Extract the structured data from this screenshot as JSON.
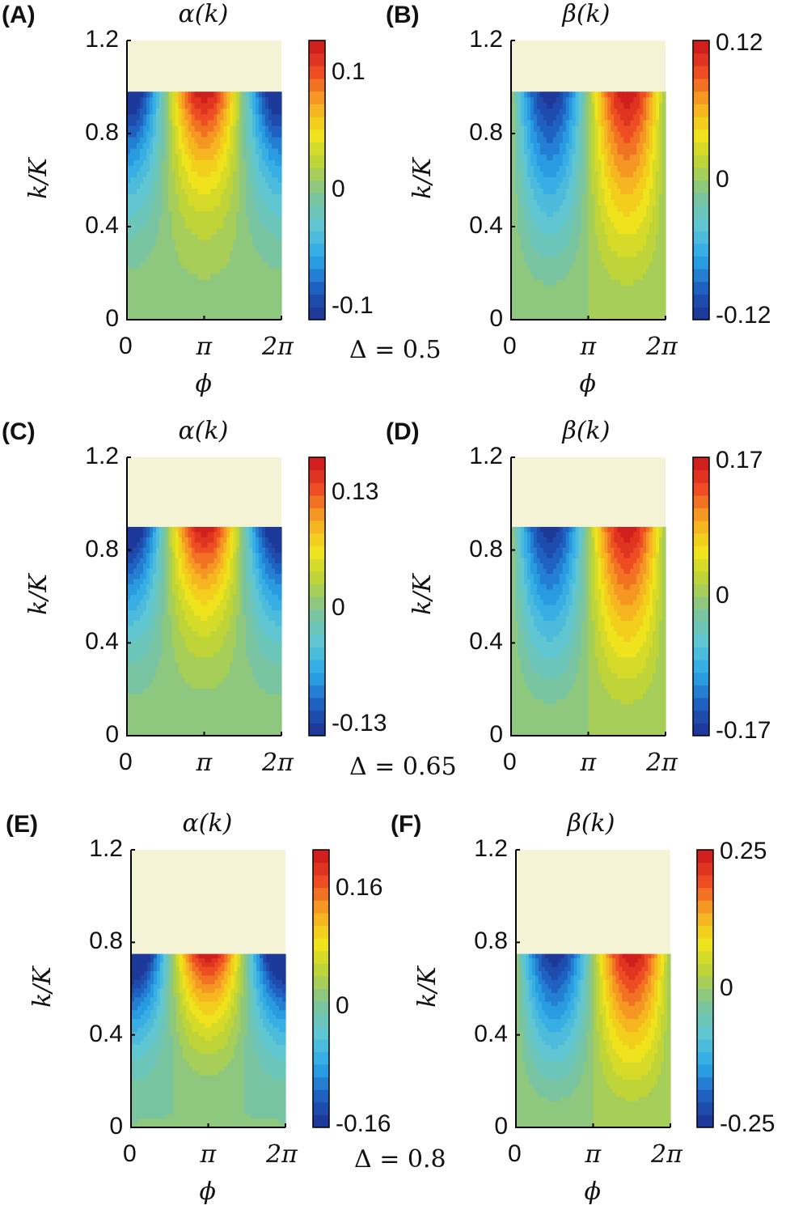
{
  "chart_data": [
    {
      "panel": "(A)",
      "type": "heatmap",
      "title": "α(k)",
      "quantity": "alpha",
      "delta": 0.5,
      "xlabel": "ϕ",
      "ylabel": "k/K",
      "xticks": [
        "0",
        "π",
        "2π"
      ],
      "yticks": [
        "0",
        "0.4",
        "0.8",
        "1.2"
      ],
      "ylim": [
        0,
        1.2
      ],
      "xlim": [
        0,
        6.2832
      ],
      "k_cutoff": 0.98,
      "clim": [
        -0.111,
        0.128
      ],
      "cbar_ticks": [
        {
          "v": 0.1,
          "label": "0.1"
        },
        {
          "v": 0,
          "label": "0"
        },
        {
          "v": -0.1,
          "label": "-0.1"
        }
      ]
    },
    {
      "panel": "(B)",
      "type": "heatmap",
      "title": "β(k)",
      "quantity": "beta",
      "delta": 0.5,
      "xlabel": "ϕ",
      "ylabel": "k/K",
      "xticks": [
        "0",
        "π",
        "2π"
      ],
      "yticks": [
        "0",
        "0.4",
        "0.8",
        "1.2"
      ],
      "ylim": [
        0,
        1.2
      ],
      "xlim": [
        0,
        6.2832
      ],
      "k_cutoff": 0.98,
      "clim": [
        -0.123,
        0.123
      ],
      "cbar_ticks": [
        {
          "v": 0.12,
          "label": "0.12"
        },
        {
          "v": 0,
          "label": "0"
        },
        {
          "v": -0.12,
          "label": "-0.12"
        }
      ]
    },
    {
      "panel": "(C)",
      "type": "heatmap",
      "title": "α(k)",
      "quantity": "alpha",
      "delta": 0.65,
      "xlabel": "",
      "ylabel": "k/K",
      "xticks": [
        "0",
        "π",
        "2π"
      ],
      "yticks": [
        "0",
        "0.4",
        "0.8",
        "1.2"
      ],
      "ylim": [
        0,
        1.2
      ],
      "xlim": [
        0,
        6.2832
      ],
      "k_cutoff": 0.9,
      "clim": [
        -0.143,
        0.17
      ],
      "cbar_ticks": [
        {
          "v": 0.13,
          "label": "0.13"
        },
        {
          "v": 0,
          "label": "0"
        },
        {
          "v": -0.13,
          "label": "-0.13"
        }
      ]
    },
    {
      "panel": "(D)",
      "type": "heatmap",
      "title": "β(k)",
      "quantity": "beta",
      "delta": 0.65,
      "xlabel": "",
      "ylabel": "k/K",
      "xticks": [
        "0",
        "π",
        "2π"
      ],
      "yticks": [
        "0",
        "0.4",
        "0.8",
        "1.2"
      ],
      "ylim": [
        0,
        1.2
      ],
      "xlim": [
        0,
        6.2832
      ],
      "k_cutoff": 0.9,
      "clim": [
        -0.175,
        0.175
      ],
      "cbar_ticks": [
        {
          "v": 0.17,
          "label": "0.17"
        },
        {
          "v": 0,
          "label": "0"
        },
        {
          "v": -0.17,
          "label": "-0.17"
        }
      ]
    },
    {
      "panel": "(E)",
      "type": "heatmap",
      "title": "α(k)",
      "quantity": "alpha",
      "delta": 0.8,
      "xlabel": "ϕ",
      "ylabel": "k/K",
      "xticks": [
        "0",
        "π",
        "2π"
      ],
      "yticks": [
        "0",
        "0.4",
        "0.8",
        "1.2"
      ],
      "ylim": [
        0,
        1.2
      ],
      "xlim": [
        0,
        6.2832
      ],
      "k_cutoff": 0.75,
      "clim": [
        -0.163,
        0.213
      ],
      "cbar_ticks": [
        {
          "v": 0.16,
          "label": "0.16"
        },
        {
          "v": 0,
          "label": "0"
        },
        {
          "v": -0.16,
          "label": "-0.16"
        }
      ]
    },
    {
      "panel": "(F)",
      "type": "heatmap",
      "title": "β(k)",
      "quantity": "beta",
      "delta": 0.8,
      "xlabel": "ϕ",
      "ylabel": "k/K",
      "xticks": [
        "0",
        "π",
        "2π"
      ],
      "yticks": [
        "0",
        "0.4",
        "0.8",
        "1.2"
      ],
      "ylim": [
        0,
        1.2
      ],
      "xlim": [
        0,
        6.2832
      ],
      "k_cutoff": 0.75,
      "clim": [
        -0.255,
        0.255
      ],
      "cbar_ticks": [
        {
          "v": 0.25,
          "label": "0.25"
        },
        {
          "v": 0,
          "label": "0"
        },
        {
          "v": -0.25,
          "label": "-0.25"
        }
      ]
    }
  ],
  "delta_labels": [
    "Δ = 0.5",
    "Δ = 0.65",
    "Δ = 0.8"
  ],
  "colors": {
    "excluded_region": "#f5f3d6",
    "colormap": [
      "#1d2f8f",
      "#1f5fbf",
      "#2aa6e8",
      "#5ec6d6",
      "#7cc49a",
      "#b8d23c",
      "#f2e41a",
      "#f6a623",
      "#ee4a22",
      "#c8141c"
    ]
  }
}
